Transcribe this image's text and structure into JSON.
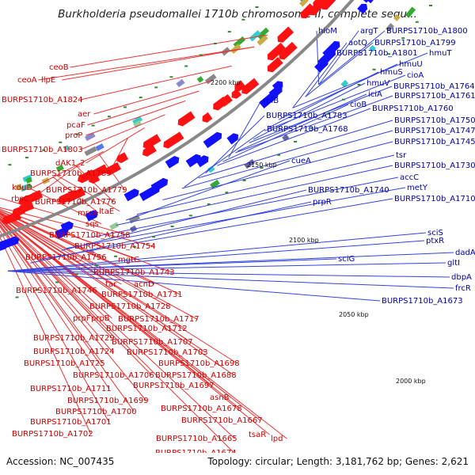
{
  "title": "Burkholderia pseudomallei 1710b chromosome II, complete sequ...",
  "footer": {
    "accession": "Accession: NC_007435",
    "topology": "Topology: circular; Length: 3,181,762 bp; Genes: 2,621"
  },
  "colors": {
    "left_label": "#cc0000",
    "right_label": "#0000aa",
    "left_line": "#ee3333",
    "right_line": "#3344dd",
    "forward_arrow": "#ff1111",
    "reverse_arrow": "#1111ff",
    "backbone": "#888888",
    "tick_mark": "#338833"
  },
  "ticks": [
    "2200 kbp",
    "2150 kbp",
    "2100 kbp",
    "2050 kbp",
    "2000 kbp"
  ],
  "left_labels": [
    "ceoB",
    "ceoA",
    "llpE",
    "BURPS1710b_A1824",
    "aer",
    "pcaF",
    "proP",
    "BURPS1710b_A1803",
    "dAK1_2",
    "BURPS1710b_A1789",
    "kduD",
    "rbsC",
    "BURPS1710b_A1779",
    "BURPS1710b_A1776",
    "mrcA",
    "ltaE",
    "sqs",
    "BURPS1710b_A1758",
    "BURPS1710b_A1754",
    "BURPS1710b_A1756",
    "mgtC",
    "BURPS1710b_A1743",
    "tar",
    "acnD",
    "BURPS1710b_A1746",
    "BURPS1710b_A1731",
    "BURPS1710b_A1728",
    "prpF",
    "prpB",
    "BURPS1710b_A1717",
    "BURPS1710b_A1712",
    "BURPS1710b_A1729",
    "BURPS1710b_A1707",
    "BURPS1710b_A1724",
    "BURPS1710b_A1703",
    "BURPS1710b_A1725",
    "BURPS1710b_A1698",
    "BURPS1710b_A1706",
    "BURPS1710b_A1688",
    "BURPS1710b_A1711",
    "BURPS1710b_A1697",
    "BURPS1710b_A1699",
    "BURPS1710b_A1700",
    "BURPS1710b_A1678",
    "asnB",
    "BURPS1710b_A1701",
    "BURPS1710b_A1667",
    "BURPS1710b_A1702",
    "BURPS1710b_A1665",
    "tsaR",
    "lpd",
    "BURPS1710b_A1674"
  ],
  "right_labels": [
    "hioM",
    "argT",
    "BURPS1710b_A1800",
    "aotQ",
    "BURPS1710b_A1799",
    "BURPS1710b_A1801",
    "hmuT",
    "hmuU",
    "cioA",
    "hmuS",
    "hmuV",
    "BURPS1710b_A1764",
    "iciA",
    "BURPS1710b_A1761",
    "rpiB",
    "cioB",
    "BURPS1710b_A1760",
    "BURPS1710b_A1783",
    "BURPS1710b_A1750",
    "BURPS1710b_A1768",
    "BURPS1710b_A1747",
    "BURPS1710b_A1745",
    "tsr",
    "cueA",
    "BURPS1710b_A1730",
    "accC",
    "BURPS1710b_A1740",
    "metY",
    "prpR",
    "BURPS1710b_A1710",
    "sciS",
    "ptxR",
    "dadA",
    "sciG",
    "gltI",
    "dbpA",
    "frcR",
    "BURPS1710b_A1673"
  ]
}
